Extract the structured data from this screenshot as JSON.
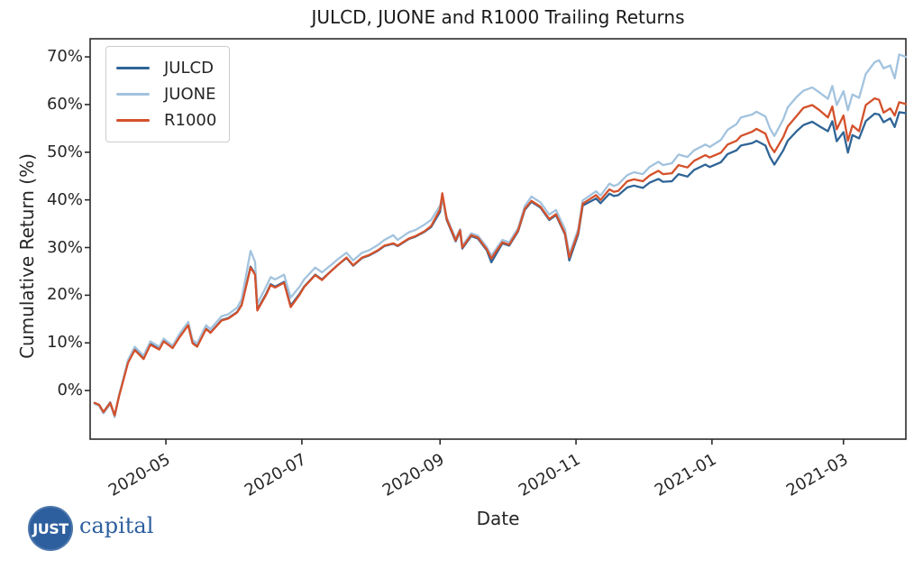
{
  "figure": {
    "background": "#ffffff",
    "text_color": "#262626",
    "spine_color": "#2b2b2b"
  },
  "logo": {
    "badge_text": "JUST",
    "word": "capital",
    "color": "#2d5f9e"
  },
  "chart_data": {
    "type": "line",
    "title": "JULCD, JUONE and R1000 Trailing Returns",
    "xlabel": "Date",
    "ylabel": "Cumulative Return (%)",
    "grid": false,
    "legend_position": "upper left",
    "xlim": [
      "2020-03-28",
      "2021-03-29"
    ],
    "ylim": [
      -10.2,
      73.8
    ],
    "y_ticks": [
      {
        "value": 0,
        "label": "0%"
      },
      {
        "value": 10,
        "label": "10%"
      },
      {
        "value": 20,
        "label": "20%"
      },
      {
        "value": 30,
        "label": "30%"
      },
      {
        "value": 40,
        "label": "40%"
      },
      {
        "value": 50,
        "label": "50%"
      },
      {
        "value": 60,
        "label": "60%"
      },
      {
        "value": 70,
        "label": "70%"
      }
    ],
    "x_ticks": [
      {
        "date": "2020-05-01",
        "label": "2020-05"
      },
      {
        "date": "2020-07-01",
        "label": "2020-07"
      },
      {
        "date": "2020-09-01",
        "label": "2020-09"
      },
      {
        "date": "2020-11-01",
        "label": "2020-11"
      },
      {
        "date": "2021-01-01",
        "label": "2021-01"
      },
      {
        "date": "2021-03-01",
        "label": "2021-03"
      }
    ],
    "x": [
      "2020-03-30",
      "2020-04-01",
      "2020-04-03",
      "2020-04-06",
      "2020-04-08",
      "2020-04-10",
      "2020-04-14",
      "2020-04-17",
      "2020-04-21",
      "2020-04-24",
      "2020-04-28",
      "2020-04-30",
      "2020-05-04",
      "2020-05-07",
      "2020-05-11",
      "2020-05-13",
      "2020-05-15",
      "2020-05-19",
      "2020-05-21",
      "2020-05-26",
      "2020-05-29",
      "2020-06-02",
      "2020-06-04",
      "2020-06-08",
      "2020-06-10",
      "2020-06-11",
      "2020-06-15",
      "2020-06-17",
      "2020-06-19",
      "2020-06-23",
      "2020-06-26",
      "2020-06-30",
      "2020-07-02",
      "2020-07-07",
      "2020-07-10",
      "2020-07-14",
      "2020-07-17",
      "2020-07-21",
      "2020-07-24",
      "2020-07-28",
      "2020-07-31",
      "2020-08-04",
      "2020-08-07",
      "2020-08-11",
      "2020-08-13",
      "2020-08-18",
      "2020-08-21",
      "2020-08-25",
      "2020-08-28",
      "2020-09-01",
      "2020-09-02",
      "2020-09-04",
      "2020-09-08",
      "2020-09-10",
      "2020-09-11",
      "2020-09-15",
      "2020-09-18",
      "2020-09-22",
      "2020-09-24",
      "2020-09-29",
      "2020-10-02",
      "2020-10-06",
      "2020-10-09",
      "2020-10-12",
      "2020-10-14",
      "2020-10-16",
      "2020-10-20",
      "2020-10-23",
      "2020-10-27",
      "2020-10-29",
      "2020-11-02",
      "2020-11-04",
      "2020-11-06",
      "2020-11-10",
      "2020-11-12",
      "2020-11-16",
      "2020-11-18",
      "2020-11-20",
      "2020-11-24",
      "2020-11-27",
      "2020-12-01",
      "2020-12-04",
      "2020-12-08",
      "2020-12-10",
      "2020-12-14",
      "2020-12-17",
      "2020-12-21",
      "2020-12-24",
      "2020-12-29",
      "2020-12-31",
      "2021-01-05",
      "2021-01-08",
      "2021-01-12",
      "2021-01-14",
      "2021-01-19",
      "2021-01-21",
      "2021-01-25",
      "2021-01-27",
      "2021-01-29",
      "2021-02-02",
      "2021-02-04",
      "2021-02-08",
      "2021-02-11",
      "2021-02-15",
      "2021-02-18",
      "2021-02-22",
      "2021-02-24",
      "2021-02-26",
      "2021-03-01",
      "2021-03-03",
      "2021-03-05",
      "2021-03-08",
      "2021-03-11",
      "2021-03-15",
      "2021-03-17",
      "2021-03-19",
      "2021-03-22",
      "2021-03-24",
      "2021-03-26",
      "2021-03-29"
    ],
    "series": [
      {
        "name": "JULCD",
        "color": "#2f6496",
        "values": [
          -2.6,
          -3.0,
          -4.5,
          -2.5,
          -5.3,
          -1.0,
          6.0,
          8.7,
          6.8,
          9.8,
          8.7,
          10.4,
          9.0,
          11.2,
          13.8,
          10.0,
          9.3,
          13.0,
          12.2,
          14.8,
          15.2,
          16.5,
          18.0,
          26.0,
          24.5,
          17.0,
          20.3,
          22.3,
          21.8,
          22.8,
          17.8,
          20.3,
          21.8,
          24.3,
          23.3,
          25.0,
          26.3,
          27.8,
          26.2,
          27.8,
          28.3,
          29.3,
          30.3,
          30.8,
          30.3,
          31.8,
          32.3,
          33.3,
          34.3,
          37.5,
          40.8,
          35.8,
          31.3,
          33.4,
          29.8,
          32.4,
          31.9,
          29.4,
          26.9,
          30.9,
          30.4,
          33.4,
          37.9,
          39.6,
          39.0,
          38.4,
          35.8,
          36.8,
          32.8,
          27.3,
          32.8,
          38.8,
          39.3,
          40.3,
          39.3,
          41.3,
          40.8,
          41.0,
          42.6,
          43.0,
          42.5,
          43.6,
          44.4,
          43.8,
          43.9,
          45.4,
          44.9,
          46.3,
          47.4,
          46.9,
          47.9,
          49.6,
          50.4,
          51.4,
          51.9,
          52.4,
          51.4,
          49.0,
          47.4,
          50.4,
          52.4,
          54.4,
          55.7,
          56.4,
          55.5,
          54.4,
          56.5,
          52.3,
          54.2,
          49.9,
          53.6,
          52.9,
          56.5,
          58.1,
          57.9,
          56.3,
          57.1,
          55.3,
          58.4,
          58.2
        ]
      },
      {
        "name": "JUONE",
        "color": "#a3c3de",
        "values": [
          -2.8,
          -3.2,
          -4.8,
          -2.8,
          -5.6,
          -1.0,
          6.4,
          9.2,
          7.3,
          10.3,
          9.2,
          10.9,
          9.4,
          11.8,
          14.4,
          10.6,
          9.9,
          13.7,
          12.9,
          15.6,
          16.0,
          17.4,
          19.2,
          29.3,
          27.0,
          18.2,
          21.8,
          23.8,
          23.3,
          24.3,
          19.5,
          21.8,
          23.3,
          25.8,
          24.8,
          26.3,
          27.5,
          28.9,
          27.3,
          28.9,
          29.4,
          30.5,
          31.6,
          32.6,
          31.6,
          33.2,
          33.7,
          34.8,
          35.8,
          38.8,
          40.5,
          36.3,
          31.9,
          33.9,
          30.4,
          33.0,
          32.5,
          30.1,
          28.3,
          31.6,
          31.1,
          34.1,
          38.7,
          40.7,
          40.1,
          39.5,
          36.9,
          37.9,
          33.9,
          28.6,
          33.9,
          39.9,
          40.5,
          41.8,
          40.9,
          43.4,
          42.9,
          43.3,
          45.2,
          45.8,
          45.4,
          46.9,
          48.0,
          47.3,
          47.7,
          49.5,
          49.0,
          50.4,
          51.6,
          51.1,
          52.6,
          54.7,
          55.9,
          57.3,
          57.9,
          58.5,
          57.5,
          55.0,
          53.4,
          56.9,
          59.4,
          61.6,
          62.9,
          63.6,
          62.6,
          61.2,
          63.9,
          59.9,
          62.8,
          58.8,
          62.1,
          61.4,
          66.4,
          68.9,
          69.3,
          67.6,
          68.2,
          65.5,
          70.5,
          70.0
        ]
      },
      {
        "name": "R1000",
        "color": "#d4512b",
        "values": [
          -2.6,
          -3.0,
          -4.5,
          -2.6,
          -5.2,
          -1.2,
          5.8,
          8.5,
          6.6,
          9.6,
          8.6,
          10.3,
          8.9,
          11.1,
          13.7,
          9.9,
          9.2,
          12.9,
          12.1,
          14.7,
          15.1,
          16.4,
          17.9,
          25.8,
          24.3,
          16.8,
          20.1,
          22.1,
          21.6,
          22.6,
          17.5,
          20.1,
          21.7,
          24.2,
          23.2,
          25.0,
          26.3,
          27.9,
          26.3,
          27.9,
          28.4,
          29.4,
          30.4,
          30.9,
          30.4,
          31.9,
          32.4,
          33.4,
          34.5,
          38.0,
          41.4,
          36.0,
          31.5,
          33.6,
          30.0,
          32.6,
          32.1,
          29.6,
          27.7,
          31.1,
          30.6,
          33.6,
          38.1,
          39.8,
          39.2,
          38.6,
          36.0,
          37.0,
          33.0,
          27.9,
          33.2,
          39.2,
          39.8,
          41.0,
          40.0,
          42.2,
          41.7,
          41.9,
          43.9,
          44.3,
          43.9,
          45.1,
          46.1,
          45.4,
          45.6,
          47.3,
          46.8,
          48.2,
          49.4,
          48.9,
          49.9,
          51.6,
          52.4,
          53.4,
          54.3,
          54.9,
          53.9,
          51.4,
          50.0,
          53.2,
          55.4,
          57.6,
          59.3,
          59.9,
          58.9,
          57.3,
          59.6,
          54.8,
          57.7,
          52.4,
          55.6,
          54.4,
          59.9,
          61.3,
          61.0,
          58.3,
          59.2,
          57.7,
          60.5,
          60.1
        ]
      }
    ]
  }
}
